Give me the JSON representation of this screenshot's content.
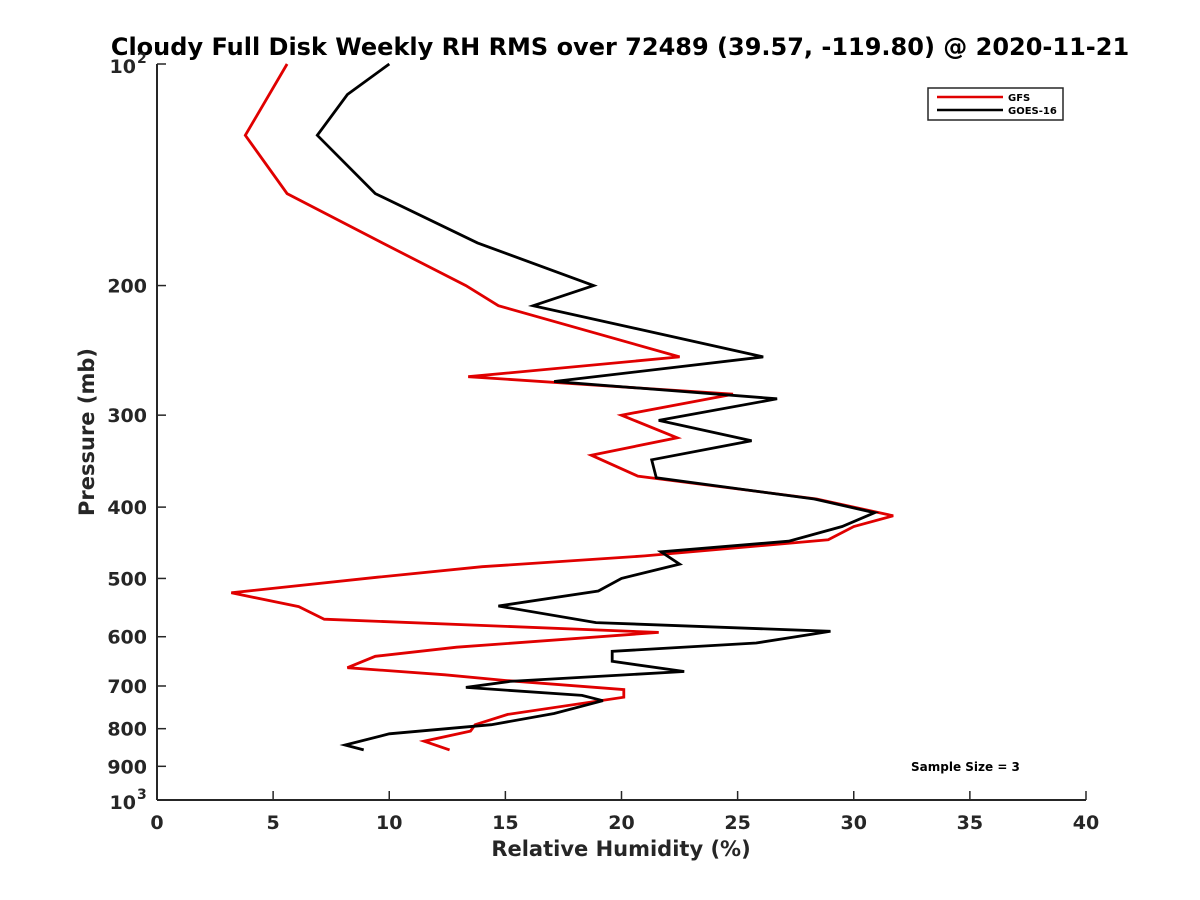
{
  "chart_data": {
    "type": "line",
    "title": "Cloudy Full Disk Weekly RH RMS over 72489 (39.57, -119.80) @ 2020-11-21",
    "xlabel": "Relative Humidity (%)",
    "ylabel": "Pressure (mb)",
    "xlim": [
      0,
      40
    ],
    "ylim": [
      100,
      1000
    ],
    "y_scale": "log",
    "y_reversed": true,
    "x_ticks": [
      "0",
      "5",
      "10",
      "15",
      "20",
      "25",
      "30",
      "35",
      "40"
    ],
    "y_ticks": [
      {
        "value": 100,
        "base": "10",
        "exp": "2"
      },
      {
        "value": 200,
        "label": "200"
      },
      {
        "value": 300,
        "label": "300"
      },
      {
        "value": 400,
        "label": "400"
      },
      {
        "value": 500,
        "label": "500"
      },
      {
        "value": 600,
        "label": "600"
      },
      {
        "value": 700,
        "label": "700"
      },
      {
        "value": 800,
        "label": "800"
      },
      {
        "value": 900,
        "label": "900"
      },
      {
        "value": 1000,
        "base": "10",
        "exp": "3"
      }
    ],
    "grid": false,
    "legend_position": "top-right",
    "annotation": "Sample Size = 3",
    "series": [
      {
        "name": "GFS",
        "color": "#e00000",
        "points": [
          [
            5.6,
            100
          ],
          [
            3.8,
            125
          ],
          [
            5.6,
            150
          ],
          [
            9.7,
            175
          ],
          [
            13.3,
            200
          ],
          [
            14.7,
            213
          ],
          [
            22.5,
            250
          ],
          [
            13.4,
            266
          ],
          [
            24.8,
            281
          ],
          [
            20.0,
            300
          ],
          [
            22.4,
            322
          ],
          [
            18.7,
            340
          ],
          [
            20.7,
            363
          ],
          [
            28.4,
            390
          ],
          [
            31.7,
            411
          ],
          [
            30.0,
            425
          ],
          [
            28.9,
            443
          ],
          [
            21.0,
            466
          ],
          [
            14.0,
            482
          ],
          [
            9.5,
            498
          ],
          [
            3.2,
            523
          ],
          [
            6.1,
            546
          ],
          [
            7.2,
            568
          ],
          [
            21.6,
            592
          ],
          [
            12.9,
            620
          ],
          [
            9.4,
            638
          ],
          [
            8.2,
            661
          ],
          [
            12.4,
            676
          ],
          [
            15.0,
            688
          ],
          [
            20.1,
            708
          ],
          [
            20.1,
            725
          ],
          [
            15.1,
            765
          ],
          [
            13.7,
            790
          ],
          [
            13.5,
            806
          ],
          [
            11.5,
            832
          ],
          [
            12.6,
            855
          ]
        ]
      },
      {
        "name": "GOES-16",
        "color": "#000000",
        "points": [
          [
            10.0,
            100
          ],
          [
            8.2,
            110
          ],
          [
            6.9,
            125
          ],
          [
            9.4,
            150
          ],
          [
            13.8,
            175
          ],
          [
            18.8,
            200
          ],
          [
            16.2,
            213
          ],
          [
            26.1,
            250
          ],
          [
            17.1,
            270
          ],
          [
            26.7,
            285
          ],
          [
            21.6,
            305
          ],
          [
            25.6,
            325
          ],
          [
            21.3,
            345
          ],
          [
            21.5,
            365
          ],
          [
            28.3,
            390
          ],
          [
            30.9,
            407
          ],
          [
            29.5,
            425
          ],
          [
            27.2,
            445
          ],
          [
            21.7,
            460
          ],
          [
            22.5,
            478
          ],
          [
            20.0,
            500
          ],
          [
            19.0,
            520
          ],
          [
            14.7,
            545
          ],
          [
            18.9,
            574
          ],
          [
            29.0,
            590
          ],
          [
            25.8,
            612
          ],
          [
            19.6,
            628
          ],
          [
            19.6,
            648
          ],
          [
            22.7,
            669
          ],
          [
            15.2,
            690
          ],
          [
            13.3,
            703
          ],
          [
            18.3,
            721
          ],
          [
            19.2,
            733
          ],
          [
            17.1,
            763
          ],
          [
            14.4,
            790
          ],
          [
            10.0,
            813
          ],
          [
            8.1,
            842
          ],
          [
            8.9,
            855
          ]
        ]
      }
    ]
  }
}
